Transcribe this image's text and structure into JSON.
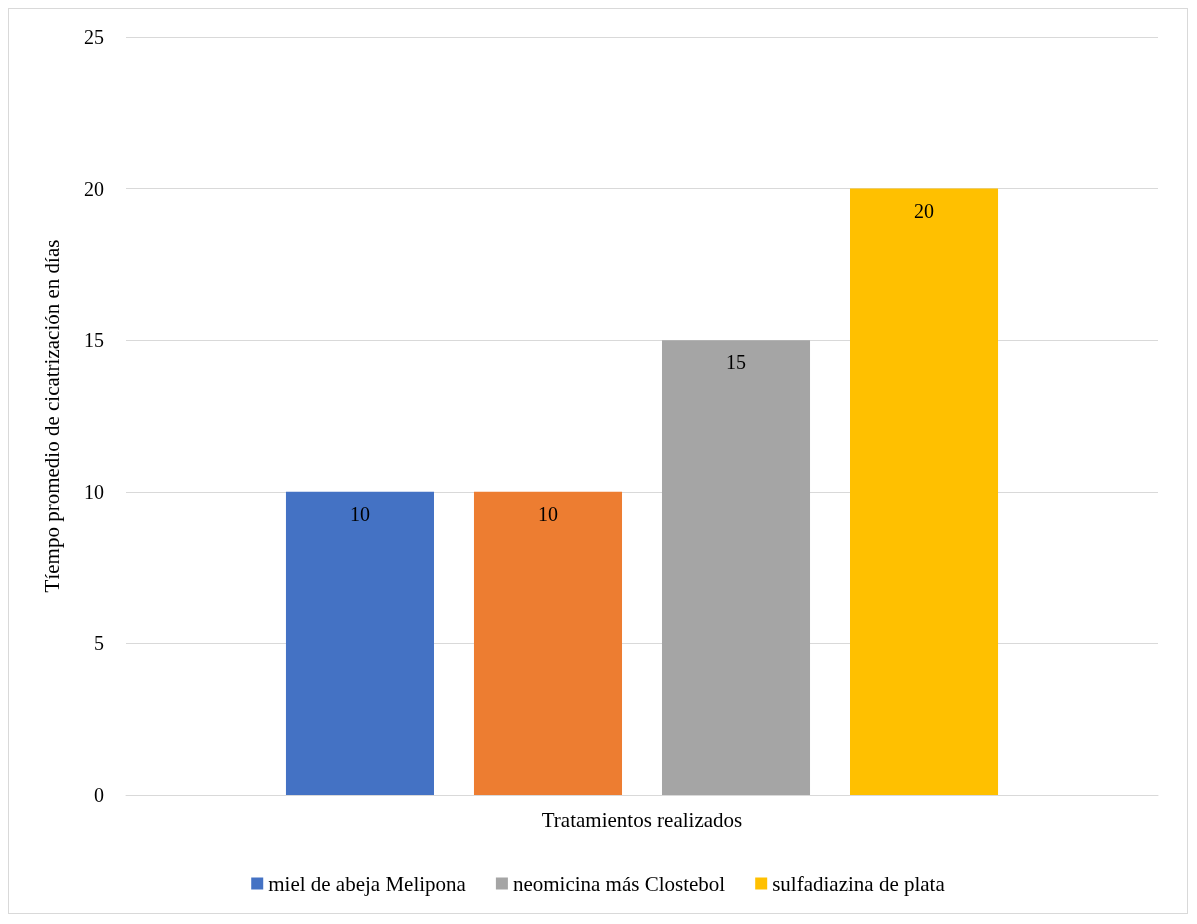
{
  "chart_data": {
    "type": "bar",
    "ylabel": "Tíempo promedio de cicatrización en días",
    "categories": [
      "Tratamientos realizados"
    ],
    "series": [
      {
        "name": "miel de abeja Melipona",
        "color": "#4472c4",
        "values": [
          10
        ]
      },
      {
        "color": "#ed7d31",
        "values": [
          10
        ]
      },
      {
        "name": "neomicina más Clostebol",
        "color": "#a5a5a5",
        "values": [
          15
        ]
      },
      {
        "name": "sulfadiazina de plata",
        "color": "#ffc000",
        "values": [
          20
        ]
      }
    ],
    "ylim": [
      0,
      25
    ],
    "yticks": [
      0,
      5,
      10,
      15,
      20,
      25
    ],
    "grid": "y",
    "legend": "bottom",
    "data_labels": true
  }
}
